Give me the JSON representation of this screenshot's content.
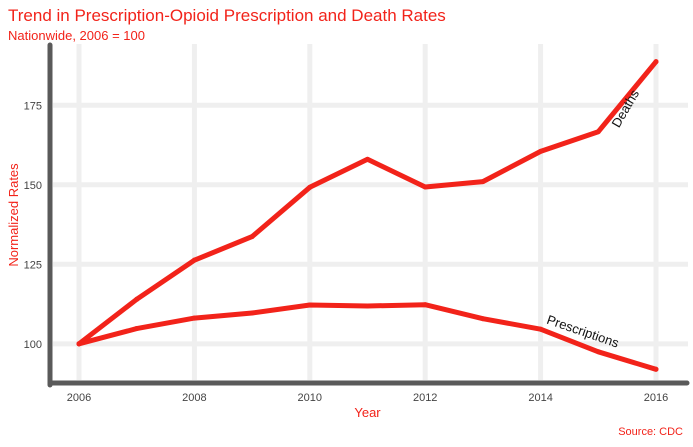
{
  "header": {
    "title": "Trend in Prescription-Opioid Prescription and Death Rates",
    "subtitle": "Nationwide, 2006 = 100"
  },
  "footer": {
    "source": "Source: CDC"
  },
  "colors": {
    "accent": "#f2231a",
    "line": "#f2231a",
    "grid": "#efefef",
    "axis": "#5a5a5a"
  },
  "chart_data": {
    "type": "line",
    "title": "Trend in Prescription-Opioid Prescription and Death Rates",
    "subtitle": "Nationwide, 2006 = 100",
    "xlabel": "Year",
    "ylabel": "Normalized Rates",
    "x": [
      2006,
      2007,
      2008,
      2009,
      2010,
      2011,
      2012,
      2013,
      2014,
      2015,
      2016
    ],
    "x_ticks": [
      2006,
      2008,
      2010,
      2012,
      2014,
      2016
    ],
    "y_ticks": [
      100,
      125,
      150,
      175
    ],
    "xlim": [
      2006,
      2016
    ],
    "ylim": [
      88,
      193
    ],
    "grid": true,
    "legend": "none",
    "series": [
      {
        "name": "Deaths",
        "values": [
          100,
          114,
          126.3,
          133.7,
          149.2,
          158.0,
          149.3,
          151.0,
          160.5,
          166.7,
          188.7
        ]
      },
      {
        "name": "Prescriptions",
        "values": [
          100,
          104.8,
          108.1,
          109.7,
          112.2,
          111.9,
          112.3,
          107.9,
          104.6,
          97.5,
          92.0
        ]
      }
    ],
    "source": "Source: CDC"
  }
}
